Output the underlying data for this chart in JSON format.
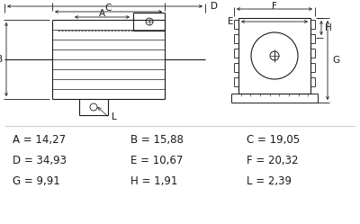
{
  "bg_color": "#ffffff",
  "text_color": "#1a1a1a",
  "line_color": "#1a1a1a",
  "measurements": [
    {
      "label": "A",
      "value": "14,27",
      "col": 0,
      "row": 0
    },
    {
      "label": "B",
      "value": "15,88",
      "col": 1,
      "row": 0
    },
    {
      "label": "C",
      "value": "19,05",
      "col": 2,
      "row": 0
    },
    {
      "label": "D",
      "value": "34,93",
      "col": 0,
      "row": 1
    },
    {
      "label": "E",
      "value": "10,67",
      "col": 1,
      "row": 1
    },
    {
      "label": "F",
      "value": "20,32",
      "col": 2,
      "row": 1
    },
    {
      "label": "G",
      "value": "9,91",
      "col": 0,
      "row": 2
    },
    {
      "label": "H",
      "value": "1,91",
      "col": 1,
      "row": 2
    },
    {
      "label": "L",
      "value": "2,39",
      "col": 2,
      "row": 2
    }
  ],
  "meas_fontsize": 8.5,
  "dim_label_fontsize": 7.5,
  "figure_width": 4.0,
  "figure_height": 2.49
}
